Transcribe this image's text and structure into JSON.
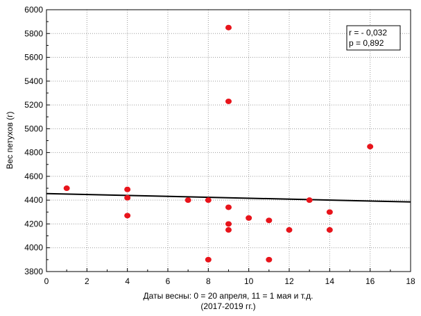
{
  "chart_data": {
    "type": "scatter",
    "title": "",
    "xlabel": "Даты весны: 0 = 20 апреля, 11 = 1 мая и т.д.",
    "xlabel_line2": "(2017-2019  гг.)",
    "ylabel": "Вес петухов (г)",
    "xlim": [
      0,
      18
    ],
    "ylim": [
      3800,
      6000
    ],
    "x_ticks": [
      0,
      2,
      4,
      6,
      8,
      10,
      12,
      14,
      16,
      18
    ],
    "y_ticks": [
      3800,
      4000,
      4200,
      4400,
      4600,
      4800,
      5000,
      5200,
      5400,
      5600,
      5800,
      6000
    ],
    "grid": true,
    "point_color": "#e8141b",
    "series": [
      {
        "name": "points",
        "x": [
          1,
          4,
          4,
          4,
          7,
          8,
          8,
          9,
          9,
          9,
          9,
          9,
          10,
          11,
          11,
          12,
          13,
          14,
          14,
          16
        ],
        "y": [
          4500,
          4490,
          4420,
          4270,
          4400,
          4400,
          3900,
          5850,
          5230,
          4340,
          4200,
          4150,
          4250,
          4230,
          3900,
          4150,
          4400,
          4300,
          4150,
          4850
        ]
      }
    ],
    "regression_line": {
      "x": [
        0,
        18
      ],
      "y": [
        4455,
        4385
      ]
    },
    "legend": {
      "position": "top-right",
      "lines": [
        "r = - 0,032",
        "p = 0,892"
      ]
    }
  }
}
